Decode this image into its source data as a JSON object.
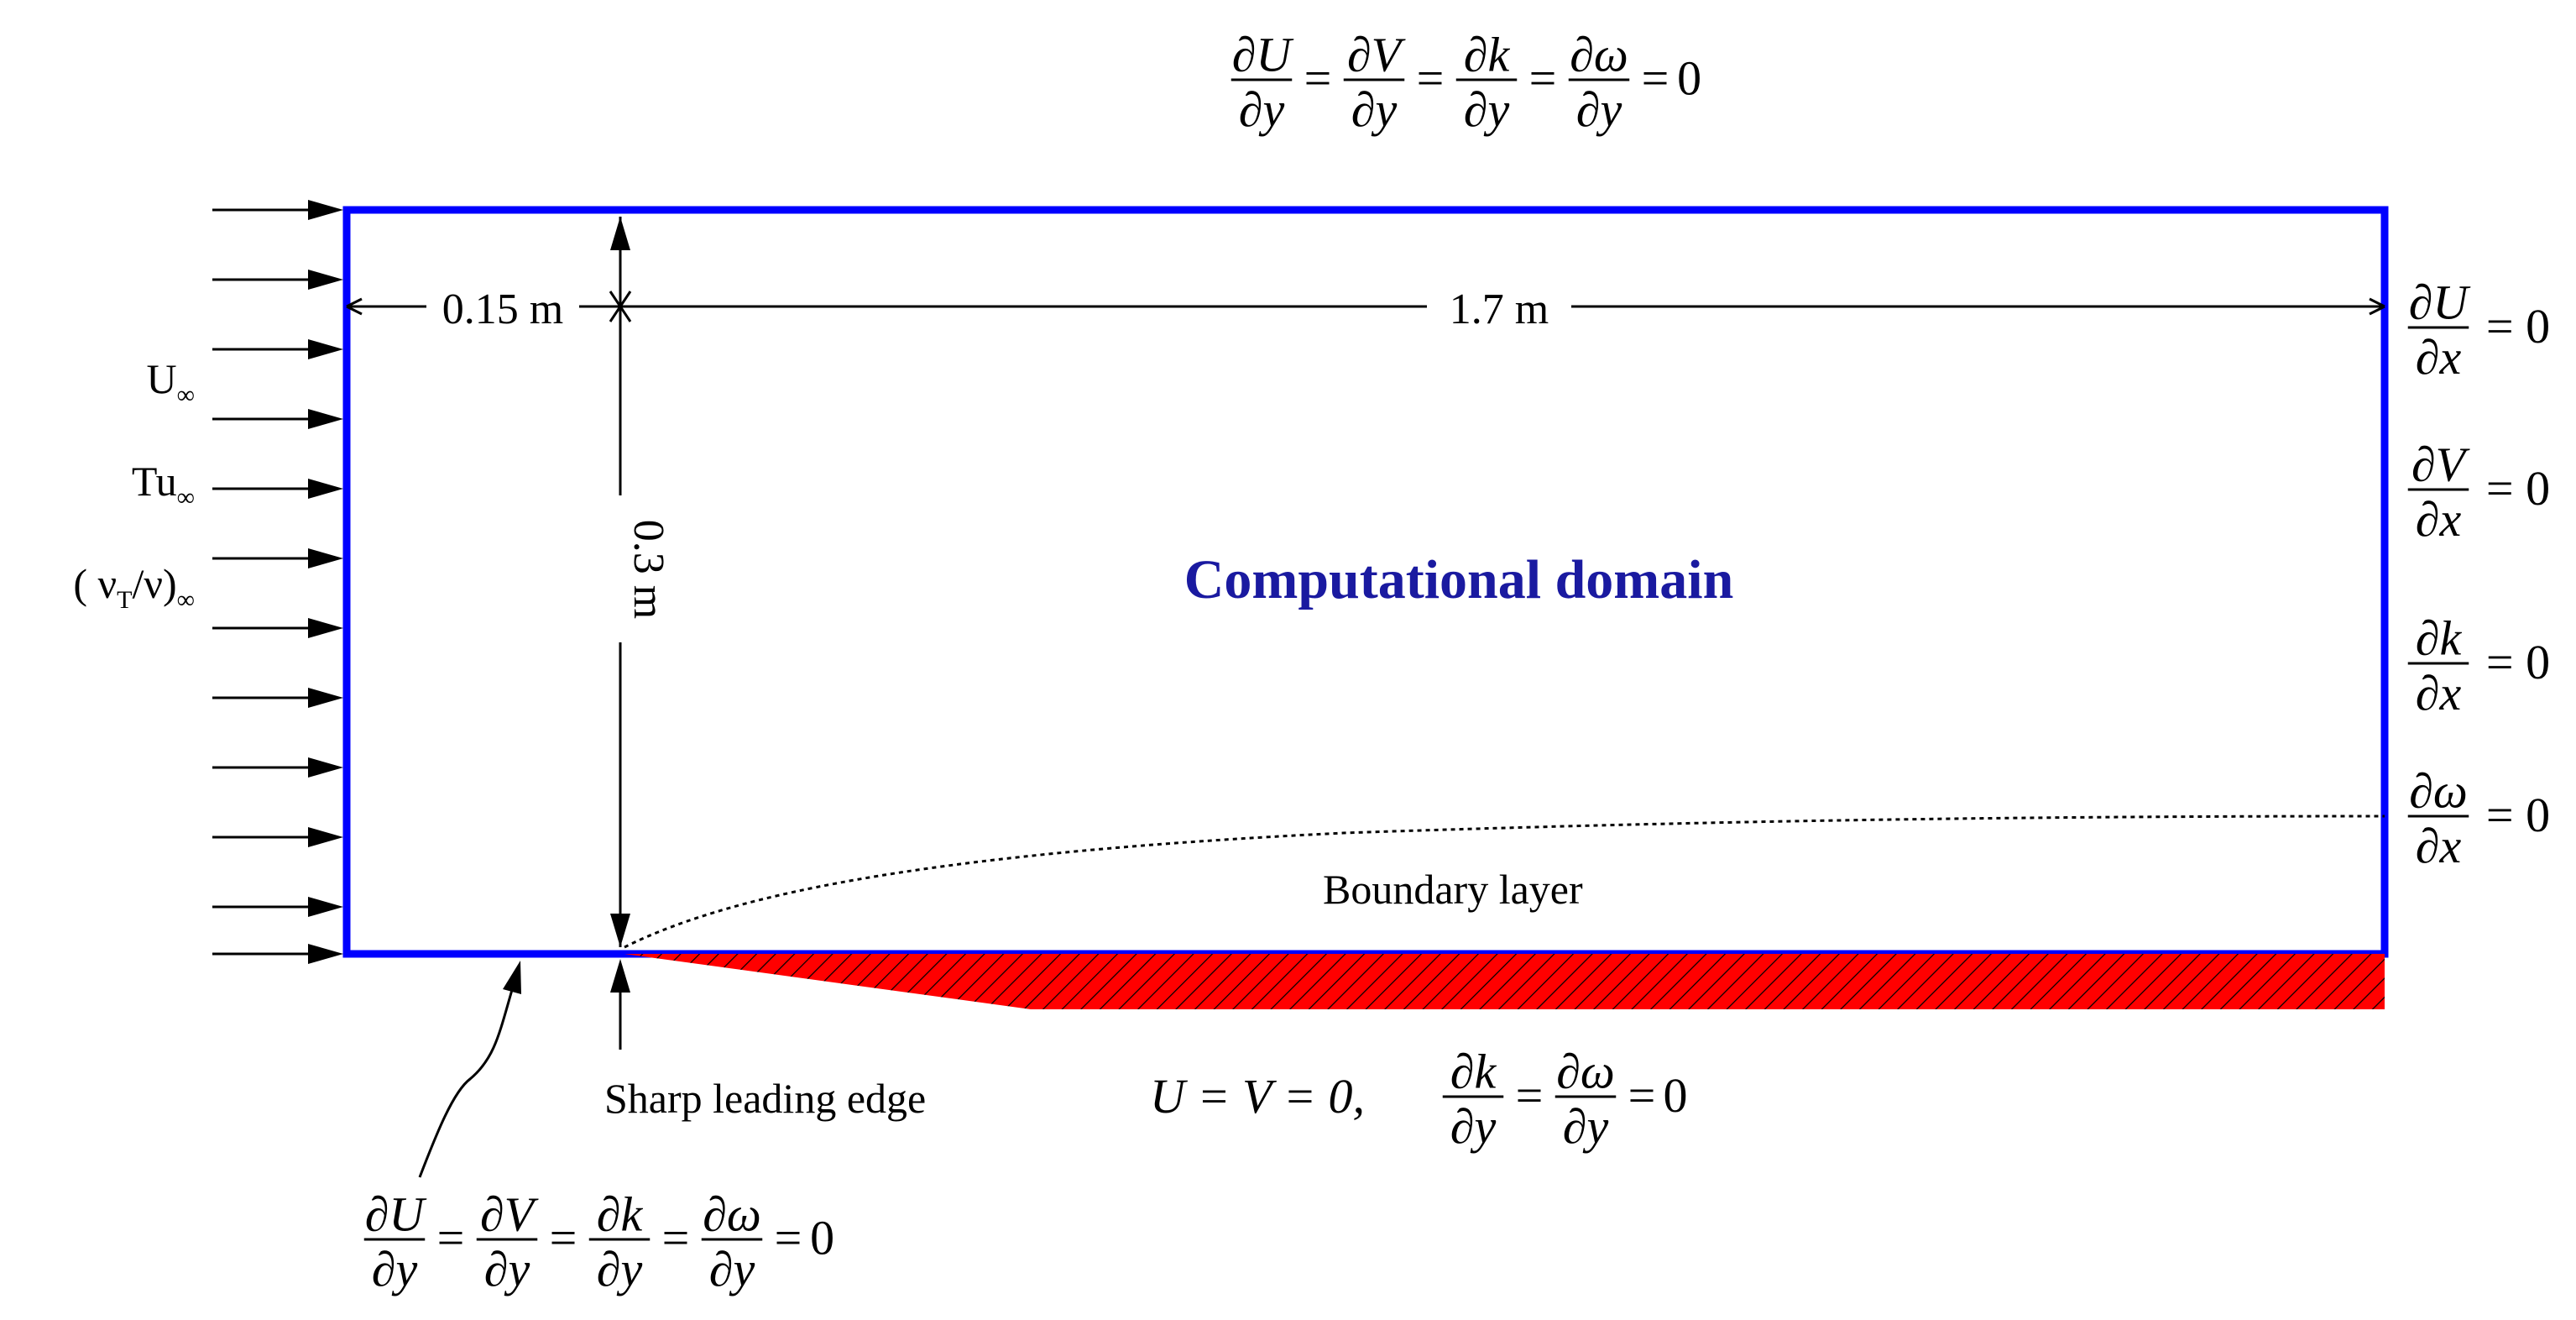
{
  "domain_title": "Computational domain",
  "dimensions": {
    "upstream_length": "0.15 m",
    "plate_length": "1.7 m",
    "height": "0.3 m"
  },
  "inlet_labels": {
    "velocity": "U",
    "turbulence_intensity": "Tu",
    "viscosity_ratio": "( ν",
    "viscosity_ratio_sub": "T",
    "viscosity_ratio_tail": "/ν)",
    "infinity": "∞"
  },
  "labels": {
    "boundary_layer": "Boundary layer",
    "leading_edge": "Sharp leading edge"
  },
  "equations": {
    "partial": "∂",
    "equals": "=",
    "zero": "0",
    "equals_zero": "= 0",
    "top_symmetry": [
      "U",
      "V",
      "k",
      "ω"
    ],
    "top_denominator": "y",
    "outlet": [
      {
        "num": "U",
        "den": "x"
      },
      {
        "num": "V",
        "den": "x"
      },
      {
        "num": "k",
        "den": "x"
      },
      {
        "num": "ω",
        "den": "x"
      }
    ],
    "wall_noslip": "U = V = 0,",
    "wall_terms": [
      "k",
      "ω"
    ],
    "wall_denominator": "y",
    "bottom_symmetry": [
      "U",
      "V",
      "k",
      "ω"
    ],
    "bottom_denominator": "y"
  },
  "colors": {
    "domain_border": "#0000ff",
    "title": "#1a1aa0",
    "plate_fill": "#ff0000",
    "ink": "#000000"
  }
}
